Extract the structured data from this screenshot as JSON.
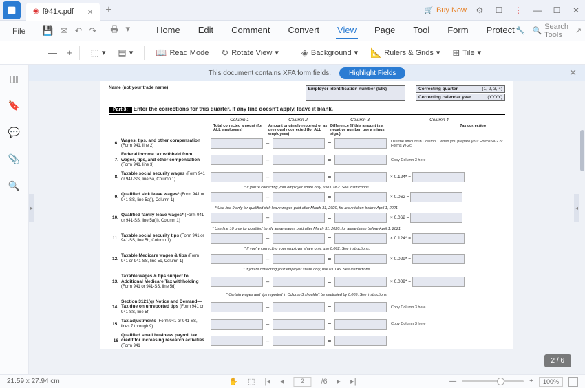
{
  "app": {
    "tab_name": "f941x.pdf"
  },
  "title_right": {
    "buy_now": "Buy Now"
  },
  "menu": {
    "file": "File",
    "items": [
      "Home",
      "Edit",
      "Comment",
      "Convert",
      "View",
      "Page",
      "Tool",
      "Form",
      "Protect"
    ],
    "active_index": 4,
    "search": "Search Tools"
  },
  "toolbar": {
    "read_mode": "Read Mode",
    "rotate_view": "Rotate View",
    "background": "Background",
    "rulers": "Rulers & Grids",
    "tile": "Tile"
  },
  "banner": {
    "text": "This document contains XFA form fields.",
    "button": "Highlight Fields"
  },
  "doc": {
    "name_label": "Name (not your trade name)",
    "ein_label": "Employer identification number (EIN)",
    "correcting_quarter": "Correcting quarter",
    "cq_value": "(1, 2, 3, 4)",
    "correcting_year": "Correcting calendar year",
    "cy_value": "(YYYY)",
    "part": "Part 3:",
    "part_text": "Enter the corrections for this quarter. If any line doesn't apply, leave it blank.",
    "col1": "Column 1",
    "col2": "Column 2",
    "col3": "Column 3",
    "col4": "Column 4",
    "sub1": "Total corrected amount (for ALL employees)",
    "sub2": "Amount originally reported or as previously corrected (for ALL employees)",
    "sub3": "Difference (If this amount is a negative number, use a minus sign.)",
    "sub4": "Tax correction",
    "rows": [
      {
        "n": "6.",
        "l": "Wages, tips, and other compensation",
        "s": "(Form 941, line 2)",
        "note": "Use the amount in Column 1 when you prepare your Forms W-2 or Forms W-2c."
      },
      {
        "n": "7.",
        "l": "Federal income tax withheld from wages, tips, and other compensation",
        "s": "(Form 941, line 3)",
        "note": "Copy Column 3 here"
      },
      {
        "n": "8.",
        "l": "Taxable social security wages",
        "s": "(Form 941 or 941-SS, line 5a, Column 1)",
        "mult": "× 0.124* =",
        "below": "* If you're correcting your employer share only, use 0.062. See instructions."
      },
      {
        "n": "9.",
        "l": "Qualified sick leave wages*",
        "s": "(Form 941 or 941-SS, line 5a(i), Column 1)",
        "mult": "× 0.062 =",
        "below": "* Use line 9 only for qualified sick leave wages paid after March 31, 2020, for leave taken before April 1, 2021."
      },
      {
        "n": "10.",
        "l": "Qualified family leave wages*",
        "s": "(Form 941 or 941-SS, line 5a(ii), Column 1)",
        "mult": "× 0.062 =",
        "below": "* Use line 10 only for qualified family leave wages paid after March 31, 2020, for leave taken before April 1, 2021."
      },
      {
        "n": "11.",
        "l": "Taxable social security tips",
        "s": "(Form 941 or 941-SS, line 5b, Column 1)",
        "mult": "× 0.124* =",
        "below": "* If you're correcting your employer share only, use 0.062. See instructions."
      },
      {
        "n": "12.",
        "l": "Taxable Medicare wages & tips",
        "s": "(Form 941 or 941-SS, line 5c, Column 1)",
        "mult": "× 0.029* =",
        "below": "* If you're correcting your employer share only, use 0.0145. See instructions."
      },
      {
        "n": "13.",
        "l": "Taxable wages & tips subject to Additional Medicare Tax withholding",
        "s": "(Form 941 or 941-SS, line 5d)",
        "mult": "× 0.009* =",
        "below": "* Certain wages and tips reported in Column 3 shouldn't be multiplied by 0.009. See instructions."
      },
      {
        "n": "14.",
        "l": "Section 3121(q) Notice and Demand—Tax due on unreported tips",
        "s": "(Form 941 or 941-SS, line 5f)",
        "note": "Copy Column 3 here"
      },
      {
        "n": "15.",
        "l": "Tax adjustments",
        "s": "(Form 941 or 941-SS, lines 7 through 9)",
        "note": "Copy Column 3 here"
      },
      {
        "n": "16",
        "l": "Qualified small business payroll tax credit for increasing research activities",
        "s": "(Form 941"
      }
    ]
  },
  "status": {
    "dims": "21.59 x 27.94 cm",
    "page_current": "2",
    "page_total": "/6",
    "zoom": "100%",
    "badge": "2 / 6"
  }
}
